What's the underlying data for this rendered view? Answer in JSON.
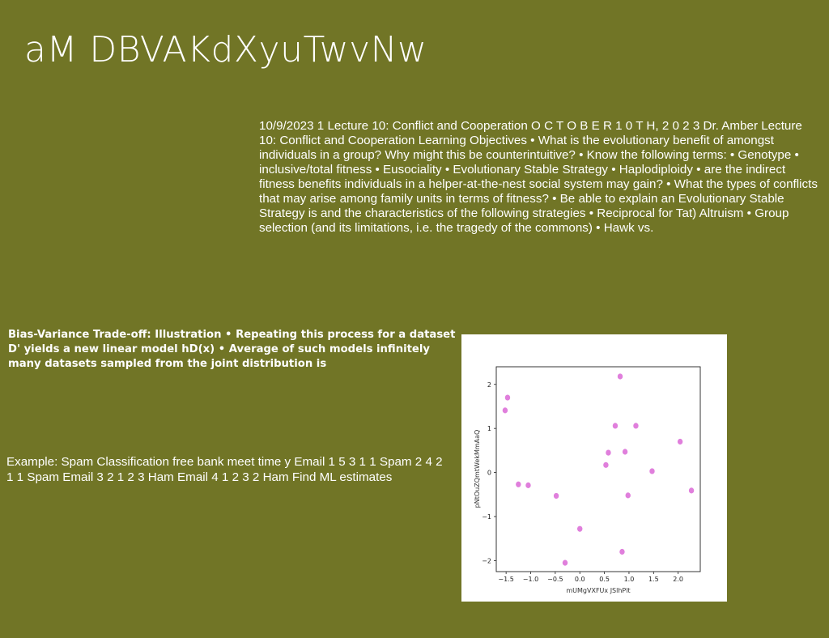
{
  "slide": {
    "title": "aM DBVAKdXyuTwvNw",
    "lecture_text": "10/9/2023 1 Lecture 10: Conflict and Cooperation O C T O B E R 1 0 T H, 2 0 2 3 Dr. Amber Lecture 10: Conflict and Cooperation Learning Objectives • What is the evolutionary benefit of amongst individuals in a group? Why might this be counterintuitive? • Know the following terms: • Genotype • inclusive/total fitness • Eusociality • Evolutionary Stable Strategy • Haplodiploidy • are the indirect fitness benefits individuals in a helper-at-the-nest social system may gain? • What the types of conflicts that may arise among family units in terms of fitness? • Be able to explain an Evolutionary Stable Strategy is and the characteristics of the following strategies • Reciprocal for Tat) Altruism • Group selection (and its limitations, i.e. the tragedy of the commons) • Hawk vs.",
    "bias_text": "Bias-Variance Trade-off: Illustration • Repeating this process for a dataset D' yields a new linear model hD(x) • Average of such models infinitely many datasets sampled from the joint distribution is",
    "example_text": "Example: Spam Classification free bank meet time y Email 1 5 3 1 1 Spam 2 4 2 1 1 Spam Email 3 2 1 2 3 Ham Email 4 1 2 3 2 Ham Find ML estimates"
  },
  "chart_data": {
    "type": "scatter",
    "xlabel": "mUMgVXFUx JSlhPlt",
    "ylabel": "pNtOuZQmtWekMmAaQ",
    "xlim": [
      -1.7,
      2.45
    ],
    "ylim": [
      -2.25,
      2.4
    ],
    "xticks": [
      "−1.5",
      "−1.0",
      "−0.5",
      "0.0",
      "0.5",
      "1.0",
      "1.5",
      "2.0"
    ],
    "xtick_values": [
      -1.5,
      -1.0,
      -0.5,
      0.0,
      0.5,
      1.0,
      1.5,
      2.0
    ],
    "yticks": [
      "2",
      "1",
      "0",
      "−1",
      "−2"
    ],
    "ytick_values": [
      2,
      1,
      0,
      -1,
      -2
    ],
    "point_color": "#e07fdc",
    "points": [
      {
        "x": -1.52,
        "y": 1.41
      },
      {
        "x": -1.47,
        "y": 1.7
      },
      {
        "x": -1.25,
        "y": -0.27
      },
      {
        "x": -1.05,
        "y": -0.29
      },
      {
        "x": -0.48,
        "y": -0.53
      },
      {
        "x": -0.3,
        "y": -2.05
      },
      {
        "x": 0.0,
        "y": -1.28
      },
      {
        "x": 0.53,
        "y": 0.17
      },
      {
        "x": 0.58,
        "y": 0.45
      },
      {
        "x": 0.72,
        "y": 1.06
      },
      {
        "x": 0.82,
        "y": 2.18
      },
      {
        "x": 0.86,
        "y": -1.8
      },
      {
        "x": 0.92,
        "y": 0.47
      },
      {
        "x": 0.98,
        "y": -0.52
      },
      {
        "x": 1.14,
        "y": 1.06
      },
      {
        "x": 1.47,
        "y": 0.03
      },
      {
        "x": 2.04,
        "y": 0.7
      },
      {
        "x": 2.27,
        "y": -0.41
      }
    ]
  }
}
